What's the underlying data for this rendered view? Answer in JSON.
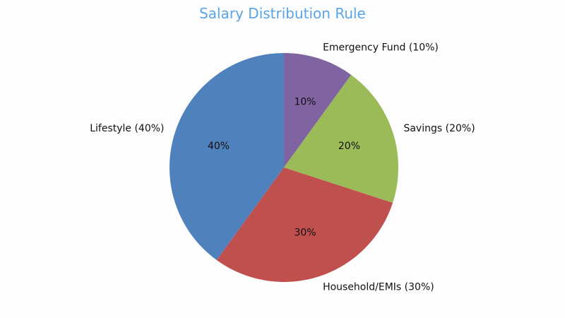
{
  "chart_data": {
    "type": "pie",
    "title": "Salary Distribution Rule",
    "start": "top, clockwise",
    "slices": [
      {
        "label": "Emergency Fund (10%)",
        "value": 10,
        "pct_label": "10%",
        "color": "#8064a2"
      },
      {
        "label": "Savings (20%)",
        "value": 20,
        "pct_label": "20%",
        "color": "#9bbb59"
      },
      {
        "label": "Household/EMIs (30%)",
        "value": 30,
        "pct_label": "30%",
        "color": "#c0504d"
      },
      {
        "label": "Lifestyle (40%)",
        "value": 40,
        "pct_label": "40%",
        "color": "#4f81bd"
      }
    ]
  }
}
